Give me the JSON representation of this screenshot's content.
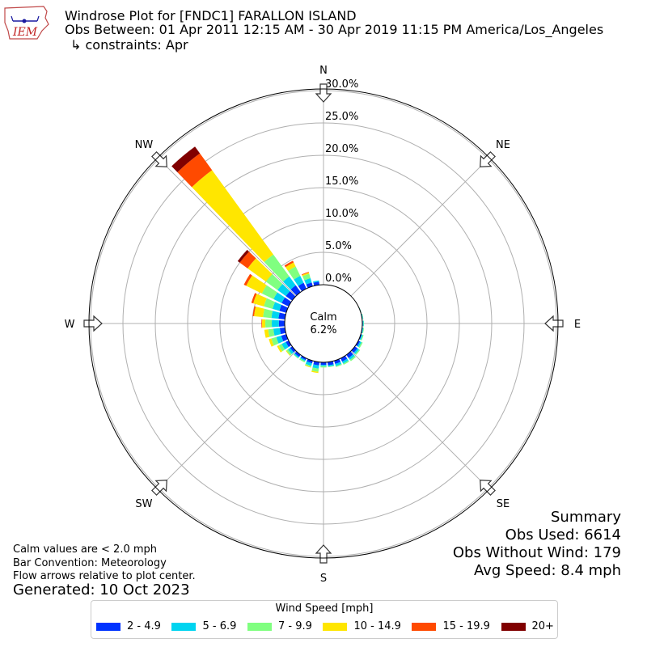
{
  "header": {
    "title": "Windrose Plot for [FNDC1] FARALLON ISLAND",
    "obs_between": "Obs Between: 01 Apr 2011 12:15 AM - 30 Apr 2019 11:15 PM America/Los_Angeles",
    "constraints": "↳ constraints: Apr",
    "logo_text": "IEM"
  },
  "footnotes": {
    "calm_note": "Calm values are < 2.0 mph",
    "bar_convention": "Bar Convention: Meteorology",
    "flow_arrows": "Flow arrows relative to plot center.",
    "generated": "Generated: 10 Oct 2023"
  },
  "summary": {
    "heading": "Summary",
    "obs_used": "Obs Used: 6614",
    "obs_without_wind": "Obs Without Wind: 179",
    "avg_speed": "Avg Speed: 8.4 mph"
  },
  "legend": {
    "title": "Wind Speed [mph]",
    "items": [
      {
        "label": "2 - 4.9",
        "color": "#0033ff"
      },
      {
        "label": "5 - 6.9",
        "color": "#00d4f0"
      },
      {
        "label": "7 - 9.9",
        "color": "#80ff80"
      },
      {
        "label": "10 - 14.9",
        "color": "#ffe600"
      },
      {
        "label": "15 - 19.9",
        "color": "#ff4a00"
      },
      {
        "label": "20+",
        "color": "#800000"
      }
    ]
  },
  "chart_data": {
    "type": "windrose",
    "calm": {
      "label": "Calm",
      "value": "6.2%"
    },
    "radial_ticks": [
      "0.0%",
      "5.0%",
      "10.0%",
      "15.0%",
      "20.0%",
      "25.0%",
      "30.0%"
    ],
    "radial_values": [
      0,
      5,
      10,
      15,
      20,
      25,
      30
    ],
    "rlim": [
      0,
      30
    ],
    "direction_labels": [
      "N",
      "NE",
      "E",
      "SE",
      "S",
      "SW",
      "W",
      "NW"
    ],
    "speed_bins": [
      "2 - 4.9",
      "5 - 6.9",
      "7 - 9.9",
      "10 - 14.9",
      "15 - 19.9",
      "20+"
    ],
    "colors": [
      "#0033ff",
      "#00d4f0",
      "#80ff80",
      "#ffe600",
      "#ff4a00",
      "#800000"
    ],
    "directions_deg": [
      0,
      10,
      20,
      30,
      40,
      50,
      60,
      70,
      80,
      90,
      100,
      110,
      120,
      130,
      140,
      150,
      160,
      170,
      180,
      190,
      200,
      210,
      220,
      230,
      240,
      250,
      260,
      270,
      280,
      290,
      300,
      310,
      320,
      330,
      340,
      350
    ],
    "cumulative_percent": [
      [
        0.0,
        0.0,
        0.0,
        0.0,
        0.0,
        0.0
      ],
      [
        0.0,
        0.0,
        0.0,
        0.0,
        0.0,
        0.0
      ],
      [
        0.0,
        0.0,
        0.0,
        0.0,
        0.0,
        0.0
      ],
      [
        0.0,
        0.0,
        0.0,
        0.0,
        0.0,
        0.0
      ],
      [
        0.0,
        0.0,
        0.0,
        0.0,
        0.0,
        0.0
      ],
      [
        0.0,
        0.0,
        0.0,
        0.0,
        0.0,
        0.0
      ],
      [
        0.0,
        0.0,
        0.0,
        0.0,
        0.0,
        0.0
      ],
      [
        0.05,
        0.08,
        0.1,
        0.1,
        0.1,
        0.1
      ],
      [
        0.08,
        0.15,
        0.2,
        0.2,
        0.2,
        0.2
      ],
      [
        0.1,
        0.2,
        0.25,
        0.25,
        0.25,
        0.25
      ],
      [
        0.1,
        0.2,
        0.3,
        0.3,
        0.3,
        0.3
      ],
      [
        0.15,
        0.3,
        0.45,
        0.45,
        0.45,
        0.45
      ],
      [
        0.3,
        0.55,
        0.75,
        0.75,
        0.75,
        0.75
      ],
      [
        0.5,
        0.8,
        1.0,
        1.0,
        1.0,
        1.0
      ],
      [
        0.6,
        0.95,
        1.2,
        1.2,
        1.2,
        1.2
      ],
      [
        0.55,
        0.9,
        1.1,
        1.1,
        1.1,
        1.1
      ],
      [
        0.5,
        0.85,
        1.0,
        1.0,
        1.0,
        1.0
      ],
      [
        0.5,
        0.7,
        0.8,
        0.8,
        0.8,
        0.8
      ],
      [
        0.4,
        0.6,
        0.8,
        0.8,
        0.8,
        0.8
      ],
      [
        0.5,
        1.0,
        1.5,
        1.7,
        1.7,
        1.7
      ],
      [
        0.4,
        0.8,
        1.0,
        1.1,
        1.1,
        1.1
      ],
      [
        0.3,
        0.5,
        0.7,
        0.7,
        0.7,
        0.7
      ],
      [
        0.4,
        0.6,
        0.7,
        0.7,
        0.7,
        0.7
      ],
      [
        0.4,
        0.8,
        1.1,
        1.2,
        1.2,
        1.2
      ],
      [
        0.5,
        1.2,
        1.7,
        2.0,
        2.0,
        2.0
      ],
      [
        0.8,
        1.6,
        2.4,
        2.8,
        2.8,
        2.8
      ],
      [
        0.8,
        1.8,
        2.6,
        3.2,
        3.2,
        3.2
      ],
      [
        0.9,
        2.0,
        3.0,
        3.5,
        3.6,
        3.6
      ],
      [
        1.0,
        2.1,
        3.4,
        4.8,
        5.0,
        5.0
      ],
      [
        1.1,
        2.2,
        3.6,
        5.3,
        5.6,
        5.6
      ],
      [
        1.2,
        2.6,
        4.6,
        7.3,
        7.7,
        7.7
      ],
      [
        1.2,
        2.8,
        5.0,
        8.5,
        10.0,
        10.4
      ],
      [
        1.3,
        3.0,
        7.2,
        23.3,
        26.5,
        27.8
      ],
      [
        1.0,
        2.2,
        3.8,
        4.5,
        4.8,
        4.8
      ],
      [
        0.6,
        1.3,
        2.0,
        2.2,
        2.3,
        2.3
      ],
      [
        0.5,
        0.7,
        0.7,
        0.7,
        0.7,
        0.7
      ]
    ]
  }
}
